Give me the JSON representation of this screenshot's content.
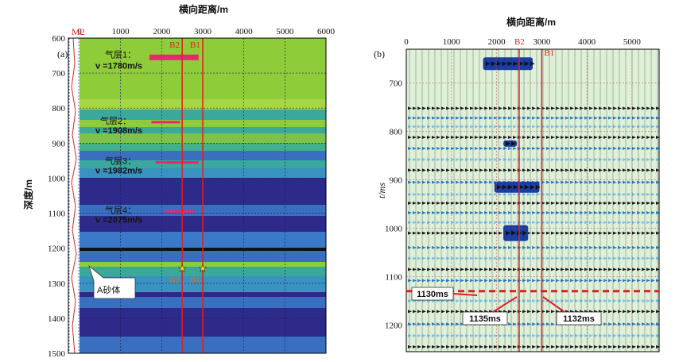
{
  "left_panel": {
    "panel_label": "(a)",
    "x_title": "横向距离/m",
    "y_title": "深度/m",
    "x_ticks": [
      0,
      1000,
      2000,
      3000,
      4000,
      5000,
      6000
    ],
    "y_ticks": [
      600,
      700,
      800,
      900,
      1000,
      1100,
      1200,
      1300,
      1400,
      1500
    ],
    "xlim": [
      0,
      6000
    ],
    "ylim": [
      600,
      1500
    ],
    "well_label": "M2",
    "line_b1_top": "B1",
    "line_b2_top": "B2",
    "line_b1_bottom": "B1",
    "line_b2_bottom": "B2",
    "line_b1_x": 3000,
    "line_b2_x": 2500,
    "sand_label": "A砂体",
    "sand_depth": 1258,
    "layers": [
      {
        "name": "气层1：",
        "velocity": "ν =1780m/s",
        "depth": 655,
        "x_start": 1700,
        "x_end": 2900
      },
      {
        "name": "气层2：",
        "velocity": "ν =1908m/s",
        "depth": 840,
        "x_start": 1750,
        "x_end": 2450
      },
      {
        "name": "气层3：",
        "velocity": "ν =1982m/s",
        "depth": 955,
        "x_start": 1850,
        "x_end": 2900
      },
      {
        "name": "气层4：",
        "velocity": "ν =2075m/s",
        "depth": 1095,
        "x_start": 2100,
        "x_end": 2800
      }
    ],
    "colors": {
      "green": "#8fcc3a",
      "teal": "#3aa89a",
      "blue": "#3a6fc0",
      "navy": "#2e2a8a",
      "red": "#e02020",
      "pink": "#e8286e"
    }
  },
  "right_panel": {
    "panel_label": "(b)",
    "x_title": "横向距离/m",
    "y_title": "t/ms",
    "x_ticks": [
      0,
      1000,
      2000,
      3000,
      4000,
      5000
    ],
    "y_ticks": [
      700,
      800,
      900,
      1000,
      1100,
      1200
    ],
    "xlim": [
      0,
      5600
    ],
    "ylim": [
      630,
      1255
    ],
    "line_b1": "B1",
    "line_b2": "B2",
    "line_b1_x": 3000,
    "line_b2_x": 2500,
    "horizon_time": 1130,
    "annotations": [
      "1130ms",
      "1135ms",
      "1132ms"
    ]
  }
}
